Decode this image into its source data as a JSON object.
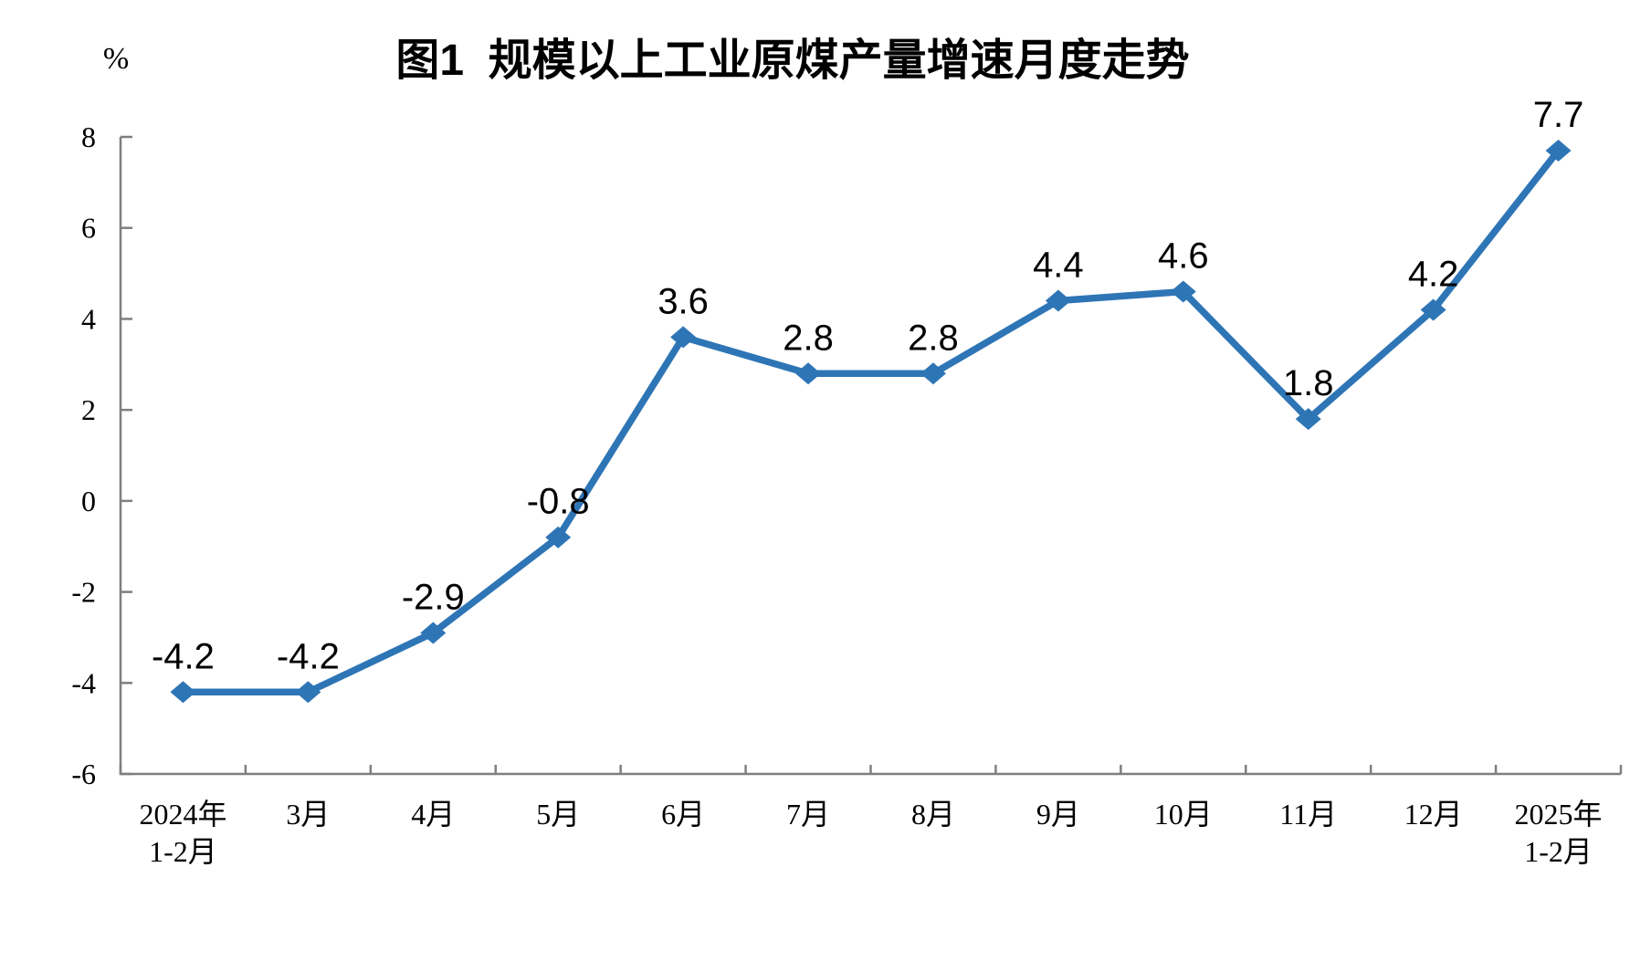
{
  "figure": {
    "background": "#ffffff"
  },
  "chart_data": {
    "type": "line",
    "title": "图1  规模以上工业原煤产量增速月度走势",
    "ylabel": "%",
    "xlabel": "",
    "ylim": [
      -6,
      8
    ],
    "ytick_step": 2,
    "ytick_labels": [
      "8",
      "6",
      "4",
      "2",
      "0",
      "-2",
      "-4",
      "-6"
    ],
    "ytick_values": [
      8,
      6,
      4,
      2,
      0,
      -2,
      -4,
      -6
    ],
    "grid": false,
    "legend_position": "none",
    "categories": [
      "2024年\n1-2月",
      "3月",
      "4月",
      "5月",
      "6月",
      "7月",
      "8月",
      "9月",
      "10月",
      "11月",
      "12月",
      "2025年\n1-2月"
    ],
    "values": [
      -4.2,
      -4.2,
      -2.9,
      -0.8,
      3.6,
      2.8,
      2.8,
      4.4,
      4.6,
      1.8,
      4.2,
      7.7
    ],
    "data_labels": [
      "-4.2",
      "-4.2",
      "-2.9",
      "-0.8",
      "3.6",
      "2.8",
      "2.8",
      "4.4",
      "4.6",
      "1.8",
      "4.2",
      "7.7"
    ],
    "series_name": "规模以上工业原煤产量增速",
    "line_color": "#2E75B6",
    "marker": "diamond",
    "axis_color": "#7F7F7F",
    "text_color": "#000000"
  }
}
